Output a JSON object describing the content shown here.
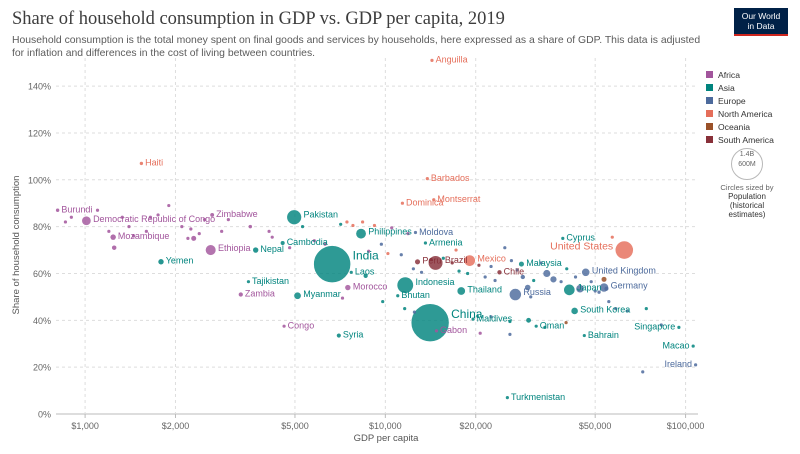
{
  "title": "Share of household consumption in GDP vs. GDP per capita, 2019",
  "subtitle": "Household consumption is the total money spent on final goods and services by households, here expressed as a share of GDP. This data is adjusted for inflation and differences in the cost of living between countries.",
  "logo": {
    "line1": "Our World",
    "line2": "in Data"
  },
  "legend": {
    "items": [
      {
        "name": "Africa",
        "color": "#a2559c"
      },
      {
        "name": "Asia",
        "color": "#00847e"
      },
      {
        "name": "Europe",
        "color": "#4c6a9c"
      },
      {
        "name": "North America",
        "color": "#e56e5a"
      },
      {
        "name": "Oceania",
        "color": "#9a5129"
      },
      {
        "name": "South America",
        "color": "#883039"
      }
    ]
  },
  "size_key": {
    "top_value": "1.4B",
    "mid_value": "600M",
    "caption": "Circles sized by",
    "measure": "Population",
    "measure_note": "(historical estimates)"
  },
  "chart_data": {
    "type": "scatter",
    "title": "Share of household consumption in GDP vs. GDP per capita, 2019",
    "xlabel": "GDP per capita",
    "ylabel": "Share of household consumption",
    "x_scale": "log",
    "xlim": [
      800,
      110000
    ],
    "ylim": [
      0,
      152
    ],
    "grid": true,
    "legend_position": "right",
    "x_ticks": [
      {
        "value": 1000,
        "label": "$1,000"
      },
      {
        "value": 2000,
        "label": "$2,000"
      },
      {
        "value": 5000,
        "label": "$5,000"
      },
      {
        "value": 10000,
        "label": "$10,000"
      },
      {
        "value": 20000,
        "label": "$20,000"
      },
      {
        "value": 50000,
        "label": "$50,000"
      },
      {
        "value": 100000,
        "label": "$100,000"
      }
    ],
    "y_ticks": [
      {
        "value": 0,
        "label": "0%"
      },
      {
        "value": 20,
        "label": "20%"
      },
      {
        "value": 40,
        "label": "40%"
      },
      {
        "value": 60,
        "label": "60%"
      },
      {
        "value": 80,
        "label": "80%"
      },
      {
        "value": 100,
        "label": "100%"
      },
      {
        "value": 120,
        "label": "120%"
      },
      {
        "value": 140,
        "label": "140%"
      }
    ],
    "points": [
      {
        "label": "Anguilla",
        "x": 14300,
        "y": 151,
        "continent": "North America",
        "pop": 0.015
      },
      {
        "label": "Haiti",
        "x": 1540,
        "y": 107,
        "continent": "North America",
        "pop": 11.3
      },
      {
        "label": "Barbados",
        "x": 13800,
        "y": 100.5,
        "continent": "North America",
        "pop": 0.29
      },
      {
        "label": "Montserrat",
        "x": 14500,
        "y": 91.5,
        "continent": "North America",
        "pop": 0.005
      },
      {
        "label": "Dominica",
        "x": 11400,
        "y": 90,
        "continent": "North America",
        "pop": 0.07
      },
      {
        "label": "Burundi",
        "x": 810,
        "y": 87,
        "continent": "Africa",
        "pop": 11.5
      },
      {
        "label": "Democratic Republic of Congo",
        "x": 1010,
        "y": 82.5,
        "continent": "Africa",
        "pop": 87
      },
      {
        "label": "Zimbabwe",
        "x": 2650,
        "y": 85,
        "continent": "Africa",
        "pop": 15
      },
      {
        "label": "Pakistan",
        "x": 4970,
        "y": 84,
        "continent": "Asia",
        "pop": 217
      },
      {
        "label": "Mozambique",
        "x": 1240,
        "y": 75.5,
        "continent": "Africa",
        "pop": 30
      },
      {
        "label": "Ethiopia",
        "x": 2620,
        "y": 70,
        "continent": "Africa",
        "pop": 112
      },
      {
        "label": "Nepal",
        "x": 3700,
        "y": 70,
        "continent": "Asia",
        "pop": 28.6
      },
      {
        "label": "Cambodia",
        "x": 4550,
        "y": 73,
        "continent": "Asia",
        "pop": 16.5
      },
      {
        "label": "Philippines",
        "x": 8300,
        "y": 77,
        "continent": "Asia",
        "pop": 108
      },
      {
        "label": "Moldova",
        "x": 12600,
        "y": 77.5,
        "continent": "Europe",
        "pop": 2.7
      },
      {
        "label": "Yemen",
        "x": 1790,
        "y": 65,
        "continent": "Asia",
        "pop": 29
      },
      {
        "label": "India",
        "x": 6650,
        "y": 64,
        "continent": "Asia",
        "pop": 1366
      },
      {
        "label": "Laos",
        "x": 7700,
        "y": 60.5,
        "continent": "Asia",
        "pop": 7.2
      },
      {
        "label": "Armenia",
        "x": 13600,
        "y": 73,
        "continent": "Asia",
        "pop": 2.96
      },
      {
        "label": "Brazil",
        "x": 14700,
        "y": 64.5,
        "continent": "South America",
        "pop": 211
      },
      {
        "label": "Peru",
        "x": 12800,
        "y": 65,
        "continent": "South America",
        "pop": 32.5
      },
      {
        "label": "Mexico",
        "x": 19100,
        "y": 65.5,
        "continent": "North America",
        "pop": 127.6
      },
      {
        "label": "Cyprus",
        "x": 39000,
        "y": 75,
        "continent": "Asia",
        "pop": 1.2
      },
      {
        "label": "Malaysia",
        "x": 28400,
        "y": 64,
        "continent": "Asia",
        "pop": 32
      },
      {
        "label": "Chile",
        "x": 24000,
        "y": 60.5,
        "continent": "South America",
        "pop": 19
      },
      {
        "label": "United States",
        "x": 62500,
        "y": 70,
        "continent": "North America",
        "pop": 329
      },
      {
        "label": "United Kingdom",
        "x": 46500,
        "y": 60.5,
        "continent": "Europe",
        "pop": 67
      },
      {
        "label": "Japan",
        "x": 41000,
        "y": 53,
        "continent": "Asia",
        "pop": 126
      },
      {
        "label": "Germany",
        "x": 53500,
        "y": 54,
        "continent": "Europe",
        "pop": 83
      },
      {
        "label": "Russia",
        "x": 27100,
        "y": 51,
        "continent": "Europe",
        "pop": 145
      },
      {
        "label": "Tajikistan",
        "x": 3500,
        "y": 56.5,
        "continent": "Asia",
        "pop": 9.3
      },
      {
        "label": "Zambia",
        "x": 3300,
        "y": 51,
        "continent": "Africa",
        "pop": 17.9
      },
      {
        "label": "Myanmar",
        "x": 5100,
        "y": 50.5,
        "continent": "Asia",
        "pop": 54
      },
      {
        "label": "Morocco",
        "x": 7500,
        "y": 54,
        "continent": "Africa",
        "pop": 36
      },
      {
        "label": "Indonesia",
        "x": 11650,
        "y": 55,
        "continent": "Asia",
        "pop": 270
      },
      {
        "label": "Bhutan",
        "x": 11000,
        "y": 50.5,
        "continent": "Asia",
        "pop": 0.76
      },
      {
        "label": "Thailand",
        "x": 17900,
        "y": 52.5,
        "continent": "Asia",
        "pop": 69.6
      },
      {
        "label": "China",
        "x": 14100,
        "y": 39,
        "continent": "Asia",
        "pop": 1434
      },
      {
        "label": "Gabon",
        "x": 14800,
        "y": 35.5,
        "continent": "Africa",
        "pop": 2.2
      },
      {
        "label": "Maldives",
        "x": 19600,
        "y": 40.5,
        "continent": "Asia",
        "pop": 0.53
      },
      {
        "label": "Oman",
        "x": 31800,
        "y": 37.5,
        "continent": "Asia",
        "pop": 4.97
      },
      {
        "label": "South Korea",
        "x": 42700,
        "y": 44,
        "continent": "Asia",
        "pop": 51.7
      },
      {
        "label": "Bahrain",
        "x": 46000,
        "y": 33.5,
        "continent": "Asia",
        "pop": 1.64
      },
      {
        "label": "Singapore",
        "x": 95000,
        "y": 37,
        "continent": "Asia",
        "pop": 5.8
      },
      {
        "label": "Macao",
        "x": 106000,
        "y": 29,
        "continent": "Asia",
        "pop": 0.64
      },
      {
        "label": "Ireland",
        "x": 108000,
        "y": 21,
        "continent": "Europe",
        "pop": 4.9
      },
      {
        "label": "Congo",
        "x": 4600,
        "y": 37.5,
        "continent": "Africa",
        "pop": 5.4
      },
      {
        "label": "Syria",
        "x": 7000,
        "y": 33.5,
        "continent": "Asia",
        "pop": 17
      },
      {
        "label": "Turkmenistan",
        "x": 25500,
        "y": 7,
        "continent": "Asia",
        "pop": 6
      },
      {
        "label": "",
        "x": 860,
        "y": 82,
        "continent": "Africa",
        "pop": 1.5
      },
      {
        "label": "",
        "x": 900,
        "y": 84,
        "continent": "Africa",
        "pop": 1
      },
      {
        "label": "",
        "x": 1100,
        "y": 87,
        "continent": "Africa",
        "pop": 1.5
      },
      {
        "label": "",
        "x": 1200,
        "y": 78,
        "continent": "Africa",
        "pop": 2
      },
      {
        "label": "",
        "x": 1250,
        "y": 71,
        "continent": "Africa",
        "pop": 20
      },
      {
        "label": "",
        "x": 1330,
        "y": 84,
        "continent": "Africa",
        "pop": 1
      },
      {
        "label": "",
        "x": 1400,
        "y": 80,
        "continent": "Africa",
        "pop": 2
      },
      {
        "label": "",
        "x": 1450,
        "y": 76,
        "continent": "Africa",
        "pop": 8
      },
      {
        "label": "",
        "x": 1600,
        "y": 78,
        "continent": "Africa",
        "pop": 3
      },
      {
        "label": "",
        "x": 1650,
        "y": 84,
        "continent": "Africa",
        "pop": 5
      },
      {
        "label": "",
        "x": 1750,
        "y": 85,
        "continent": "Africa",
        "pop": 4
      },
      {
        "label": "",
        "x": 1900,
        "y": 89,
        "continent": "Africa",
        "pop": 2
      },
      {
        "label": "",
        "x": 2100,
        "y": 80,
        "continent": "Africa",
        "pop": 9
      },
      {
        "label": "",
        "x": 2200,
        "y": 75,
        "continent": "Africa",
        "pop": 4
      },
      {
        "label": "",
        "x": 2250,
        "y": 79,
        "continent": "Africa",
        "pop": 3
      },
      {
        "label": "",
        "x": 2300,
        "y": 75,
        "continent": "Africa",
        "pop": 25
      },
      {
        "label": "",
        "x": 2400,
        "y": 77,
        "continent": "Africa",
        "pop": 6
      },
      {
        "label": "",
        "x": 2500,
        "y": 83,
        "continent": "Africa",
        "pop": 3
      },
      {
        "label": "",
        "x": 2850,
        "y": 78,
        "continent": "Africa",
        "pop": 2
      },
      {
        "label": "",
        "x": 3000,
        "y": 83,
        "continent": "Africa",
        "pop": 3
      },
      {
        "label": "",
        "x": 3550,
        "y": 80,
        "continent": "Africa",
        "pop": 12
      },
      {
        "label": "",
        "x": 4100,
        "y": 78,
        "continent": "Africa",
        "pop": 2
      },
      {
        "label": "",
        "x": 4200,
        "y": 75.5,
        "continent": "Africa",
        "pop": 1
      },
      {
        "label": "",
        "x": 4800,
        "y": 71,
        "continent": "Africa",
        "pop": 6
      },
      {
        "label": "",
        "x": 5300,
        "y": 80,
        "continent": "Asia",
        "pop": 5
      },
      {
        "label": "",
        "x": 5800,
        "y": 74,
        "continent": "Africa",
        "pop": 1.5
      },
      {
        "label": "",
        "x": 6300,
        "y": 72.5,
        "continent": "Africa",
        "pop": 2
      },
      {
        "label": "",
        "x": 7100,
        "y": 81,
        "continent": "Asia",
        "pop": 3
      },
      {
        "label": "",
        "x": 7450,
        "y": 82,
        "continent": "North America",
        "pop": 1
      },
      {
        "label": "",
        "x": 7800,
        "y": 80.5,
        "continent": "North America",
        "pop": 2
      },
      {
        "label": "",
        "x": 8400,
        "y": 82,
        "continent": "North America",
        "pop": 0.5
      },
      {
        "label": "",
        "x": 9200,
        "y": 80.5,
        "continent": "North America",
        "pop": 0.5
      },
      {
        "label": "",
        "x": 9700,
        "y": 72.5,
        "continent": "Europe",
        "pop": 2
      },
      {
        "label": "",
        "x": 8800,
        "y": 69.5,
        "continent": "Africa",
        "pop": 1
      },
      {
        "label": "",
        "x": 10500,
        "y": 79.5,
        "continent": "Africa",
        "pop": 1
      },
      {
        "label": "",
        "x": 11900,
        "y": 77,
        "continent": "Africa",
        "pop": 5
      },
      {
        "label": "",
        "x": 10200,
        "y": 68.5,
        "continent": "North America",
        "pop": 0.5
      },
      {
        "label": "",
        "x": 11300,
        "y": 68,
        "continent": "Europe",
        "pop": 2
      },
      {
        "label": "",
        "x": 12400,
        "y": 62,
        "continent": "Europe",
        "pop": 4
      },
      {
        "label": "",
        "x": 13200,
        "y": 60.5,
        "continent": "Europe",
        "pop": 7
      },
      {
        "label": "",
        "x": 14200,
        "y": 66,
        "continent": "South America",
        "pop": 3
      },
      {
        "label": "",
        "x": 15600,
        "y": 66.5,
        "continent": "Asia",
        "pop": 3
      },
      {
        "label": "",
        "x": 16700,
        "y": 64.5,
        "continent": "South America",
        "pop": 11
      },
      {
        "label": "",
        "x": 17200,
        "y": 70,
        "continent": "North America",
        "pop": 1
      },
      {
        "label": "",
        "x": 17600,
        "y": 61,
        "continent": "Asia",
        "pop": 2
      },
      {
        "label": "",
        "x": 18800,
        "y": 60,
        "continent": "Asia",
        "pop": 4
      },
      {
        "label": "",
        "x": 20500,
        "y": 63.5,
        "continent": "South America",
        "pop": 4
      },
      {
        "label": "",
        "x": 21500,
        "y": 58.5,
        "continent": "Europe",
        "pop": 10
      },
      {
        "label": "",
        "x": 22500,
        "y": 63,
        "continent": "Europe",
        "pop": 6
      },
      {
        "label": "",
        "x": 23200,
        "y": 57,
        "continent": "Europe",
        "pop": 4
      },
      {
        "label": "",
        "x": 25000,
        "y": 71,
        "continent": "Europe",
        "pop": 10
      },
      {
        "label": "",
        "x": 26300,
        "y": 65.5,
        "continent": "Europe",
        "pop": 3
      },
      {
        "label": "",
        "x": 27500,
        "y": 61.5,
        "continent": "Europe",
        "pop": 10
      },
      {
        "label": "",
        "x": 28700,
        "y": 58.5,
        "continent": "Europe",
        "pop": 19
      },
      {
        "label": "",
        "x": 29800,
        "y": 54,
        "continent": "Europe",
        "pop": 38
      },
      {
        "label": "",
        "x": 30500,
        "y": 50,
        "continent": "Europe",
        "pop": 5
      },
      {
        "label": "",
        "x": 31200,
        "y": 57,
        "continent": "Asia",
        "pop": 3
      },
      {
        "label": "",
        "x": 33000,
        "y": 64.5,
        "continent": "Europe",
        "pop": 10
      },
      {
        "label": "",
        "x": 34500,
        "y": 60,
        "continent": "Europe",
        "pop": 60
      },
      {
        "label": "",
        "x": 36300,
        "y": 57.5,
        "continent": "Europe",
        "pop": 47
      },
      {
        "label": "",
        "x": 38500,
        "y": 56.5,
        "continent": "Europe",
        "pop": 2
      },
      {
        "label": "",
        "x": 40200,
        "y": 62,
        "continent": "Asia",
        "pop": 9
      },
      {
        "label": "",
        "x": 43000,
        "y": 58.5,
        "continent": "Europe",
        "pop": 0.36
      },
      {
        "label": "",
        "x": 44500,
        "y": 53.5,
        "continent": "Europe",
        "pop": 67
      },
      {
        "label": "",
        "x": 48500,
        "y": 56.5,
        "continent": "Europe",
        "pop": 5
      },
      {
        "label": "",
        "x": 50000,
        "y": 52.5,
        "continent": "Europe",
        "pop": 10
      },
      {
        "label": "",
        "x": 51500,
        "y": 52,
        "continent": "Europe",
        "pop": 11
      },
      {
        "label": "",
        "x": 54500,
        "y": 53.5,
        "continent": "Europe",
        "pop": 17
      },
      {
        "label": "",
        "x": 55500,
        "y": 48,
        "continent": "Europe",
        "pop": 8
      },
      {
        "label": "",
        "x": 57000,
        "y": 75.5,
        "continent": "North America",
        "pop": 0.06
      },
      {
        "label": "",
        "x": 53500,
        "y": 57.5,
        "continent": "Oceania",
        "pop": 25
      },
      {
        "label": "",
        "x": 58500,
        "y": 45,
        "continent": "Europe",
        "pop": 5.8
      },
      {
        "label": "",
        "x": 64000,
        "y": 44,
        "continent": "Europe",
        "pop": 5.4
      },
      {
        "label": "",
        "x": 74000,
        "y": 45,
        "continent": "Asia",
        "pop": 2.8
      },
      {
        "label": "",
        "x": 83000,
        "y": 38,
        "continent": "Europe",
        "pop": 8.6
      },
      {
        "label": "",
        "x": 72000,
        "y": 18,
        "continent": "Europe",
        "pop": 0.6
      },
      {
        "label": "",
        "x": 40000,
        "y": 39,
        "continent": "Oceania",
        "pop": 0.2
      },
      {
        "label": "",
        "x": 34000,
        "y": 37,
        "continent": "Asia",
        "pop": 9.8
      },
      {
        "label": "",
        "x": 30000,
        "y": 40,
        "continent": "Asia",
        "pop": 23
      },
      {
        "label": "",
        "x": 26000,
        "y": 39.5,
        "continent": "Asia",
        "pop": 0.44
      },
      {
        "label": "",
        "x": 26000,
        "y": 34,
        "continent": "Europe",
        "pop": 0.5
      },
      {
        "label": "",
        "x": 20700,
        "y": 34.5,
        "continent": "Africa",
        "pop": 1.3
      },
      {
        "label": "",
        "x": 22500,
        "y": 41.5,
        "continent": "Europe",
        "pop": 4
      },
      {
        "label": "",
        "x": 11600,
        "y": 45,
        "continent": "Asia",
        "pop": 3
      },
      {
        "label": "",
        "x": 12500,
        "y": 43.5,
        "continent": "Europe",
        "pop": 2
      },
      {
        "label": "",
        "x": 9800,
        "y": 48,
        "continent": "Asia",
        "pop": 5
      },
      {
        "label": "",
        "x": 8600,
        "y": 59,
        "continent": "Asia",
        "pop": 18
      },
      {
        "label": "",
        "x": 7200,
        "y": 49.5,
        "continent": "Africa",
        "pop": 1.2
      }
    ]
  }
}
